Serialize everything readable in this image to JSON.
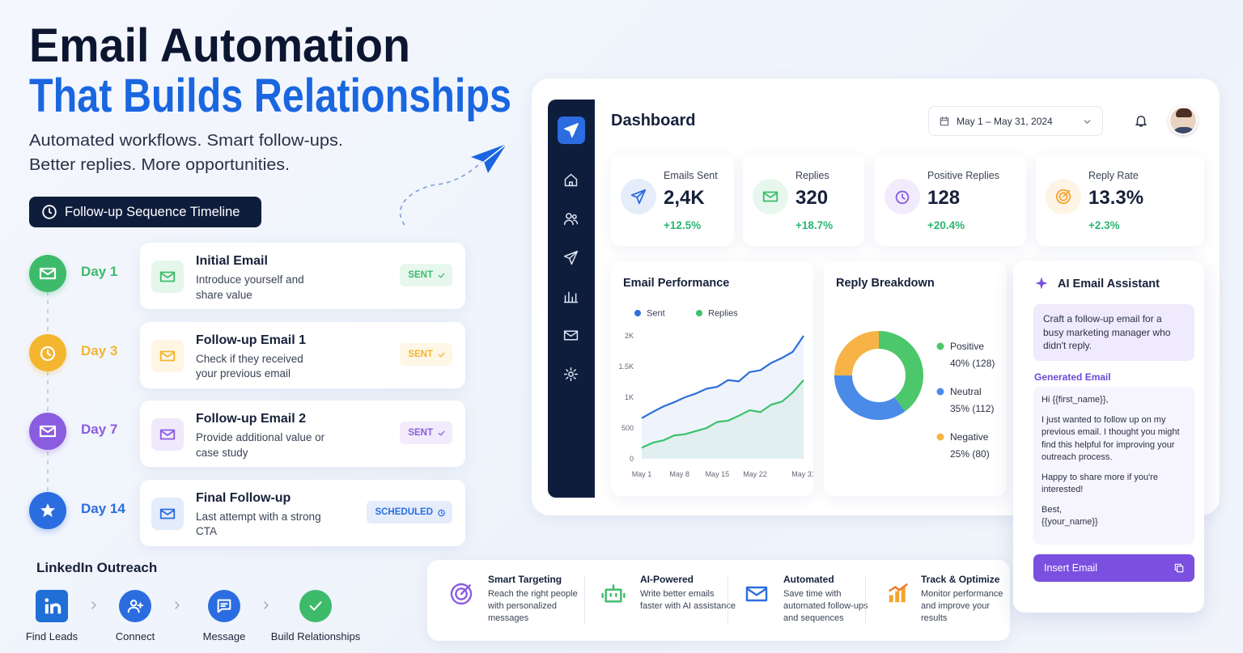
{
  "hero": {
    "title_line1": "Email Automation",
    "title_line2": "That Builds Relationships",
    "subtitle_lines": [
      "Automated workflows. Smart follow-ups.",
      "Better replies. More opportunities."
    ]
  },
  "timeline": {
    "heading": "Follow-up Sequence Timeline",
    "steps": [
      {
        "day": "Day 1",
        "title": "Initial Email",
        "description": "Introduce yourself and share value",
        "status": "SENT",
        "color": "#3dbb6b"
      },
      {
        "day": "Day 3",
        "title": "Follow-up Email 1",
        "description": "Check if they received your previous email",
        "status": "SENT",
        "color": "#f4b52f"
      },
      {
        "day": "Day 7",
        "title": "Follow-up Email 2",
        "description": "Provide additional value or case study",
        "status": "SENT",
        "color": "#8a5ce0"
      },
      {
        "day": "Day 14",
        "title": "Final Follow-up",
        "description": "Last attempt with a strong CTA",
        "status": "SCHEDULED",
        "color": "#2b6de0"
      }
    ]
  },
  "linkedin": {
    "heading": "LinkedIn Outreach",
    "steps": [
      "Find Leads",
      "Connect",
      "Message",
      "Build Relationships"
    ]
  },
  "dashboard": {
    "title": "Dashboard",
    "date_range": "May 1 – May 31, 2024",
    "stats": [
      {
        "label": "Emails Sent",
        "value": "2,4K",
        "change": "+12.5%"
      },
      {
        "label": "Replies",
        "value": "320",
        "change": "+18.7%"
      },
      {
        "label": "Positive Replies",
        "value": "128",
        "change": "+20.4%"
      },
      {
        "label": "Reply Rate",
        "value": "13.3%",
        "change": "+2.3%"
      }
    ],
    "email_performance": {
      "type": "line",
      "title": "Email Performance",
      "x": [
        1,
        3,
        5,
        7,
        9,
        11,
        13,
        15,
        17,
        19,
        21,
        23,
        25,
        27,
        29,
        31
      ],
      "xlim": [
        1,
        31
      ],
      "xticks": [
        {
          "value": 1,
          "label": "May 1"
        },
        {
          "value": 8,
          "label": "May 8"
        },
        {
          "value": 15,
          "label": "May 15"
        },
        {
          "value": 22,
          "label": "May 22"
        },
        {
          "value": 31,
          "label": "May 31"
        }
      ],
      "ylim": [
        0,
        2000
      ],
      "yticks": [
        0,
        500,
        {
          "value": 1000,
          "label": "1K"
        },
        {
          "value": 1500,
          "label": "1.5K"
        },
        {
          "value": 2000,
          "label": "2K"
        }
      ],
      "series": [
        {
          "name": "Sent",
          "color": "#2f6fd9",
          "values": [
            660,
            760,
            850,
            920,
            1000,
            1060,
            1140,
            1170,
            1280,
            1260,
            1410,
            1440,
            1560,
            1640,
            1740,
            2000
          ]
        },
        {
          "name": "Replies",
          "color": "#3cc26a",
          "values": [
            180,
            260,
            300,
            380,
            400,
            450,
            500,
            600,
            620,
            700,
            790,
            760,
            880,
            930,
            1080,
            1280
          ]
        }
      ]
    },
    "reply_breakdown": {
      "type": "donut",
      "title": "Reply Breakdown",
      "categories": [
        "Positive",
        "Neutral",
        "Negative"
      ],
      "values": [
        40,
        35,
        25
      ],
      "value_labels": [
        "40% (128)",
        "35% (112)",
        "25% (80)"
      ],
      "colors": [
        "#4cc76b",
        "#4a8be8",
        "#f7b346"
      ]
    }
  },
  "ai_assistant": {
    "title": "AI Email Assistant",
    "prompt": "Craft a follow-up email for a busy marketing manager who didn't reply.",
    "generated_label": "Generated Email",
    "email": [
      "Hi {{first_name}},",
      "I just wanted to follow up on my previous email. I thought you might find this helpful for improving your outreach process.",
      "Happy to share more if you're interested!"
    ],
    "signoff": [
      "Best,",
      "{{your_name}}"
    ],
    "button": "Insert Email"
  },
  "features": [
    {
      "title": "Smart Targeting",
      "description": "Reach the right people with personalized messages"
    },
    {
      "title": "AI-Powered",
      "description": "Write better emails faster with AI assistance"
    },
    {
      "title": "Automated",
      "description": "Save time with automated follow-ups and sequences"
    },
    {
      "title": "Track & Optimize",
      "description": "Monitor performance and improve your results"
    }
  ]
}
